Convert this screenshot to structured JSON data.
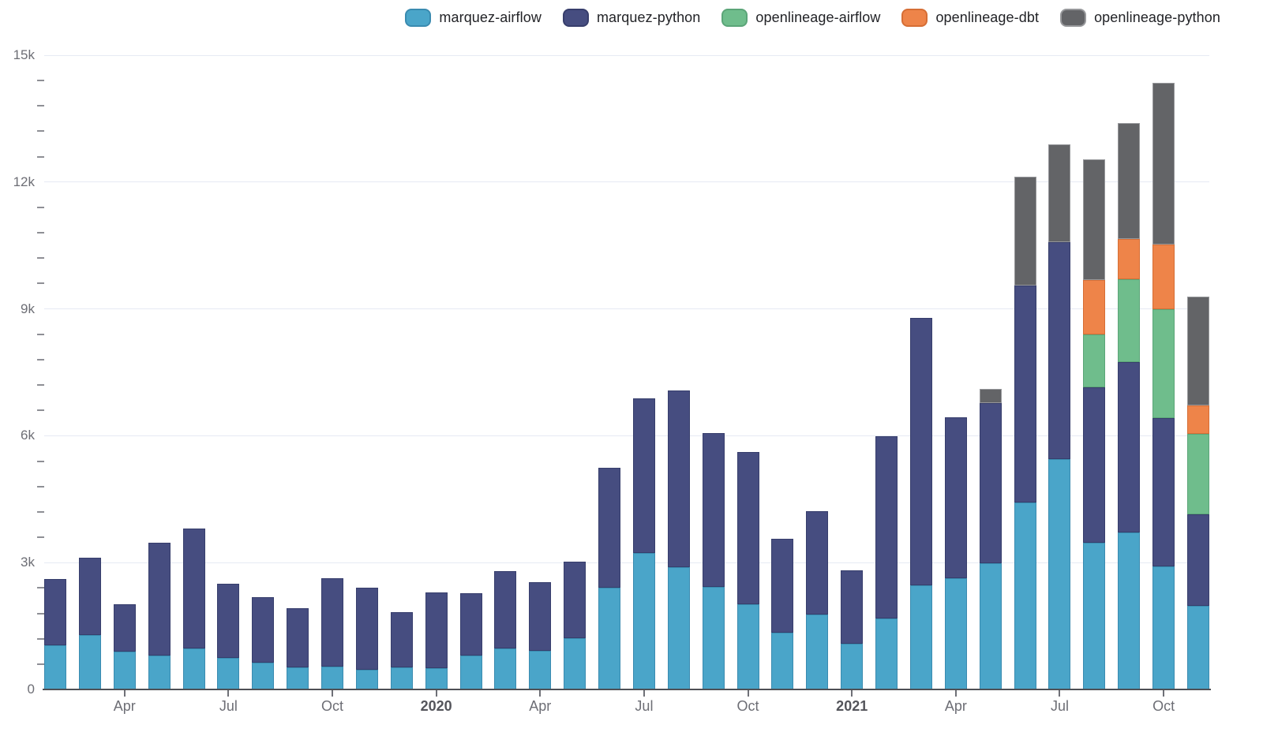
{
  "page": {
    "background": "#FFFFFF"
  },
  "colors": {
    "gridline": "#E6EAF3",
    "axis_line": "#4E5055",
    "tick_label": "#6D6E75",
    "year_label": "#54555B",
    "minor_tick": "#8E8F95",
    "legend_text": "#222327"
  },
  "chart_data": {
    "type": "bar",
    "stacked": true,
    "title": "",
    "xlabel": "",
    "ylabel": "",
    "grid": true,
    "legend_position": "top-right",
    "ylim": [
      0,
      15000
    ],
    "y_major_ticks": [
      {
        "value": 0,
        "label": "0"
      },
      {
        "value": 3000,
        "label": "3k"
      },
      {
        "value": 6000,
        "label": "6k"
      },
      {
        "value": 9000,
        "label": "9k"
      },
      {
        "value": 12000,
        "label": "12k"
      },
      {
        "value": 15000,
        "label": "15k"
      }
    ],
    "y_minor_step": 600,
    "categories": [
      "Feb 2019",
      "Mar 2019",
      "Apr 2019",
      "May 2019",
      "Jun 2019",
      "Jul 2019",
      "Aug 2019",
      "Sep 2019",
      "Oct 2019",
      "Nov 2019",
      "Dec 2019",
      "Jan 2020",
      "Feb 2020",
      "Mar 2020",
      "Apr 2020",
      "May 2020",
      "Jun 2020",
      "Jul 2020",
      "Aug 2020",
      "Sep 2020",
      "Oct 2020",
      "Nov 2020",
      "Dec 2020",
      "Jan 2021",
      "Feb 2021",
      "Mar 2021",
      "Apr 2021",
      "May 2021",
      "Jun 2021",
      "Jul 2021",
      "Aug 2021",
      "Sep 2021",
      "Oct 2021",
      "Nov 2021"
    ],
    "x_ticks": [
      {
        "index": 2,
        "label": "Apr",
        "bold": false
      },
      {
        "index": 5,
        "label": "Jul",
        "bold": false
      },
      {
        "index": 8,
        "label": "Oct",
        "bold": false
      },
      {
        "index": 11,
        "label": "2020",
        "bold": true
      },
      {
        "index": 14,
        "label": "Apr",
        "bold": false
      },
      {
        "index": 17,
        "label": "Jul",
        "bold": false
      },
      {
        "index": 20,
        "label": "Oct",
        "bold": false
      },
      {
        "index": 23,
        "label": "2021",
        "bold": true
      },
      {
        "index": 26,
        "label": "Apr",
        "bold": false
      },
      {
        "index": 29,
        "label": "Jul",
        "bold": false
      },
      {
        "index": 32,
        "label": "Oct",
        "bold": false
      }
    ],
    "series": [
      {
        "name": "marquez-airflow",
        "color": "#4AA5C9",
        "border": "#3A8BB0",
        "values": [
          1040,
          1280,
          890,
          800,
          970,
          740,
          630,
          520,
          550,
          470,
          520,
          510,
          800,
          970,
          910,
          1220,
          2400,
          3220,
          2890,
          2430,
          2020,
          1350,
          1780,
          1080,
          1680,
          2470,
          2640,
          2990,
          4430,
          5440,
          3470,
          3710,
          2920,
          1970
        ]
      },
      {
        "name": "marquez-python",
        "color": "#464D80",
        "border": "#373E6C",
        "values": [
          1570,
          1830,
          1130,
          2670,
          2840,
          1760,
          1560,
          1410,
          2080,
          1930,
          1300,
          1780,
          1480,
          1830,
          1620,
          1810,
          2840,
          3670,
          4190,
          3640,
          3600,
          2210,
          2440,
          1740,
          4310,
          6320,
          3800,
          3780,
          5120,
          5140,
          3680,
          4030,
          3500,
          2170
        ]
      },
      {
        "name": "openlineage-airflow",
        "color": "#6FBD8C",
        "border": "#5BA578",
        "values": [
          0,
          0,
          0,
          0,
          0,
          0,
          0,
          0,
          0,
          0,
          0,
          0,
          0,
          0,
          0,
          0,
          0,
          0,
          0,
          0,
          0,
          0,
          0,
          0,
          0,
          0,
          0,
          0,
          0,
          0,
          1250,
          1960,
          2580,
          1900
        ]
      },
      {
        "name": "openlineage-dbt",
        "color": "#EE8449",
        "border": "#D66E35",
        "values": [
          0,
          0,
          0,
          0,
          0,
          0,
          0,
          0,
          0,
          0,
          0,
          0,
          0,
          0,
          0,
          0,
          0,
          0,
          0,
          0,
          0,
          0,
          0,
          0,
          0,
          0,
          0,
          0,
          0,
          0,
          1280,
          960,
          1520,
          680
        ]
      },
      {
        "name": "openlineage-python",
        "color": "#636467",
        "border": "#97989B",
        "values": [
          0,
          0,
          0,
          0,
          0,
          0,
          0,
          0,
          0,
          0,
          0,
          0,
          0,
          0,
          0,
          0,
          0,
          0,
          0,
          0,
          0,
          0,
          0,
          0,
          0,
          0,
          0,
          340,
          2580,
          2320,
          2850,
          2730,
          3830,
          2580
        ]
      }
    ]
  }
}
